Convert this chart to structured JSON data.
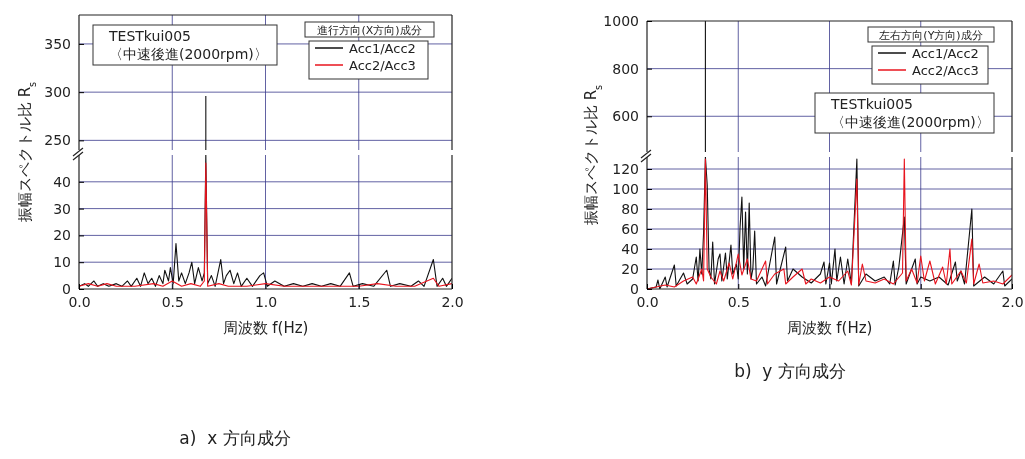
{
  "chart_data": [
    {
      "type": "line",
      "xlim": [
        0,
        2
      ],
      "ylim": [
        240,
        380
      ],
      "yticks": [
        250,
        300,
        350
      ],
      "xticks": [
        0,
        0.5,
        1,
        1.5,
        2
      ],
      "grid": true,
      "tick_labels": "y",
      "annotations": [
        "TESTkui005",
        "〈中速後進(2000rpm)〉"
      ],
      "series": [
        {
          "color": "#111111",
          "x": [
            0.68,
            0.68
          ],
          "values": [
            240,
            296
          ]
        }
      ]
    },
    {
      "type": "line",
      "xlim": [
        0,
        2
      ],
      "ylim": [
        0,
        50
      ],
      "yticks": [
        0,
        10,
        20,
        30,
        40
      ],
      "xticks": [
        {
          "value": 0,
          "label": "0.0"
        },
        0.5,
        {
          "value": 1,
          "label": "1.0"
        },
        1.5,
        {
          "value": 2,
          "label": "2.0"
        }
      ],
      "grid": true,
      "xlabel": "周波数  f(Hz)",
      "ylabel": "振幅スペクトル比  R$_{s}$",
      "legend": "top right",
      "legend_title": "進行方向(X方向)成分",
      "annotations": [
        "a)  x 方向成分"
      ],
      "series": [
        {
          "name": "Acc1/Acc2",
          "color": "#111111",
          "x": [
            0,
            0.03,
            0.05,
            0.08,
            0.1,
            0.13,
            0.16,
            0.2,
            0.23,
            0.26,
            0.28,
            0.31,
            0.33,
            0.35,
            0.37,
            0.39,
            0.41,
            0.43,
            0.45,
            0.46,
            0.48,
            0.49,
            0.505,
            0.52,
            0.535,
            0.55,
            0.57,
            0.59,
            0.605,
            0.62,
            0.64,
            0.66,
            0.672,
            0.68,
            0.69,
            0.71,
            0.73,
            0.76,
            0.775,
            0.79,
            0.81,
            0.83,
            0.85,
            0.87,
            0.9,
            0.93,
            0.97,
            0.99,
            1.01,
            1.05,
            1.1,
            1.15,
            1.2,
            1.25,
            1.3,
            1.35,
            1.4,
            1.45,
            1.47,
            1.52,
            1.58,
            1.65,
            1.67,
            1.72,
            1.78,
            1.82,
            1.85,
            1.9,
            1.92,
            1.95,
            1.97,
            2
          ],
          "values": [
            1,
            2,
            1,
            3,
            1,
            2,
            1,
            2,
            1,
            3,
            1,
            4,
            1,
            6,
            2,
            4,
            1,
            5,
            2,
            7,
            3,
            8,
            2,
            17,
            3,
            6,
            2,
            6,
            10,
            2,
            8,
            3,
            6,
            50,
            2,
            5,
            1,
            11,
            2,
            5,
            7,
            2,
            6,
            1,
            4,
            1,
            5,
            6,
            1,
            3,
            1,
            2,
            1,
            2,
            1,
            2,
            1,
            6,
            1,
            2,
            1,
            7,
            1,
            2,
            1,
            3,
            1,
            11,
            1,
            4,
            1,
            4
          ]
        },
        {
          "name": "Acc2/Acc3",
          "color": "#e8141e",
          "x": [
            0,
            0.05,
            0.1,
            0.15,
            0.2,
            0.3,
            0.4,
            0.45,
            0.5,
            0.55,
            0.6,
            0.65,
            0.672,
            0.68,
            0.69,
            0.75,
            0.8,
            0.9,
            1,
            1.1,
            1.2,
            1.3,
            1.4,
            1.5,
            1.6,
            1.7,
            1.8,
            1.9,
            1.93,
            2
          ],
          "values": [
            1,
            2,
            1,
            2,
            1,
            1,
            2,
            1,
            3,
            1,
            2,
            1,
            3,
            47,
            1,
            2,
            1,
            1,
            2,
            1,
            1,
            1,
            1,
            1,
            2,
            1,
            1,
            4,
            1,
            2
          ]
        }
      ]
    },
    {
      "type": "line",
      "xlim": [
        0,
        2
      ],
      "ylim": [
        450,
        1000
      ],
      "yticks": [
        600,
        800,
        1000
      ],
      "xticks": [
        0,
        0.5,
        1,
        1.5,
        2
      ],
      "grid": true,
      "tick_labels": "y",
      "annotations": [
        "TESTkui005",
        "〈中速後進(2000rpm)〉"
      ],
      "series": [
        {
          "color": "#111111",
          "x": [
            0.32,
            0.32
          ],
          "values": [
            450,
            1000
          ]
        }
      ]
    },
    {
      "type": "line",
      "xlim": [
        0,
        2
      ],
      "ylim": [
        0,
        132
      ],
      "yticks": [
        0,
        20,
        40,
        60,
        80,
        100,
        120
      ],
      "xticks": [
        {
          "value": 0,
          "label": "0.0"
        },
        0.5,
        {
          "value": 1,
          "label": "1.0"
        },
        1.5,
        {
          "value": 2,
          "label": "2.0"
        }
      ],
      "grid": true,
      "xlabel": "周波数  f(Hz)",
      "ylabel": "振幅スペクトル比  R$_{s}$",
      "legend": "top right",
      "legend_title": "左右方向(Y方向)成分",
      "annotations": [
        "b)  y 方向成分"
      ],
      "series": [
        {
          "name": "Acc1/Acc2",
          "color": "#111111",
          "x": [
            0,
            0.05,
            0.06,
            0.07,
            0.1,
            0.11,
            0.15,
            0.16,
            0.2,
            0.22,
            0.25,
            0.27,
            0.28,
            0.29,
            0.3,
            0.31,
            0.32,
            0.33,
            0.34,
            0.35,
            0.36,
            0.37,
            0.39,
            0.4,
            0.41,
            0.43,
            0.44,
            0.46,
            0.47,
            0.49,
            0.5,
            0.51,
            0.52,
            0.53,
            0.54,
            0.55,
            0.56,
            0.57,
            0.58,
            0.59,
            0.6,
            0.63,
            0.65,
            0.7,
            0.71,
            0.76,
            0.77,
            0.8,
            0.85,
            0.9,
            0.95,
            0.97,
            0.98,
            1,
            1.01,
            1.03,
            1.04,
            1.06,
            1.08,
            1.1,
            1.12,
            1.15,
            1.16,
            1.2,
            1.25,
            1.3,
            1.33,
            1.35,
            1.36,
            1.38,
            1.41,
            1.42,
            1.47,
            1.48,
            1.5,
            1.55,
            1.6,
            1.65,
            1.69,
            1.7,
            1.72,
            1.74,
            1.78,
            1.79,
            1.85,
            1.9,
            1.95,
            1.96,
            2
          ],
          "values": [
            0,
            2,
            9,
            0,
            12,
            2,
            24,
            3,
            16,
            5,
            10,
            32,
            8,
            40,
            15,
            56,
            132,
            104,
            20,
            10,
            47,
            5,
            30,
            35,
            8,
            36,
            10,
            44,
            15,
            25,
            10,
            62,
            92,
            20,
            77,
            15,
            86,
            10,
            20,
            58,
            5,
            12,
            3,
            52,
            5,
            42,
            8,
            20,
            12,
            6,
            15,
            27,
            5,
            26,
            5,
            40,
            8,
            32,
            5,
            30,
            5,
            130,
            3,
            15,
            8,
            12,
            5,
            28,
            4,
            22,
            72,
            5,
            30,
            5,
            12,
            8,
            12,
            4,
            27,
            8,
            18,
            5,
            80,
            3,
            12,
            5,
            18,
            3,
            10
          ]
        },
        {
          "name": "Acc2/Acc3",
          "color": "#e8141e",
          "x": [
            0,
            0.05,
            0.1,
            0.15,
            0.2,
            0.25,
            0.27,
            0.3,
            0.31,
            0.32,
            0.33,
            0.35,
            0.38,
            0.4,
            0.42,
            0.45,
            0.47,
            0.5,
            0.52,
            0.55,
            0.57,
            0.6,
            0.65,
            0.66,
            0.7,
            0.75,
            0.76,
            0.8,
            0.85,
            0.87,
            0.9,
            0.95,
            1,
            1.05,
            1.1,
            1.12,
            1.15,
            1.16,
            1.18,
            1.2,
            1.25,
            1.3,
            1.35,
            1.4,
            1.41,
            1.42,
            1.45,
            1.48,
            1.5,
            1.52,
            1.55,
            1.58,
            1.62,
            1.64,
            1.66,
            1.67,
            1.72,
            1.75,
            1.78,
            1.79,
            1.82,
            1.84,
            1.9,
            1.95,
            2
          ],
          "values": [
            0,
            2,
            4,
            2,
            8,
            12,
            5,
            20,
            8,
            130,
            20,
            12,
            5,
            18,
            8,
            26,
            10,
            35,
            14,
            30,
            10,
            8,
            28,
            5,
            15,
            20,
            5,
            12,
            20,
            5,
            10,
            6,
            12,
            8,
            18,
            4,
            110,
            4,
            25,
            8,
            6,
            10,
            5,
            16,
            130,
            8,
            20,
            6,
            33,
            8,
            28,
            5,
            22,
            5,
            40,
            5,
            18,
            6,
            50,
            5,
            25,
            6,
            8,
            5,
            14
          ]
        }
      ]
    }
  ]
}
